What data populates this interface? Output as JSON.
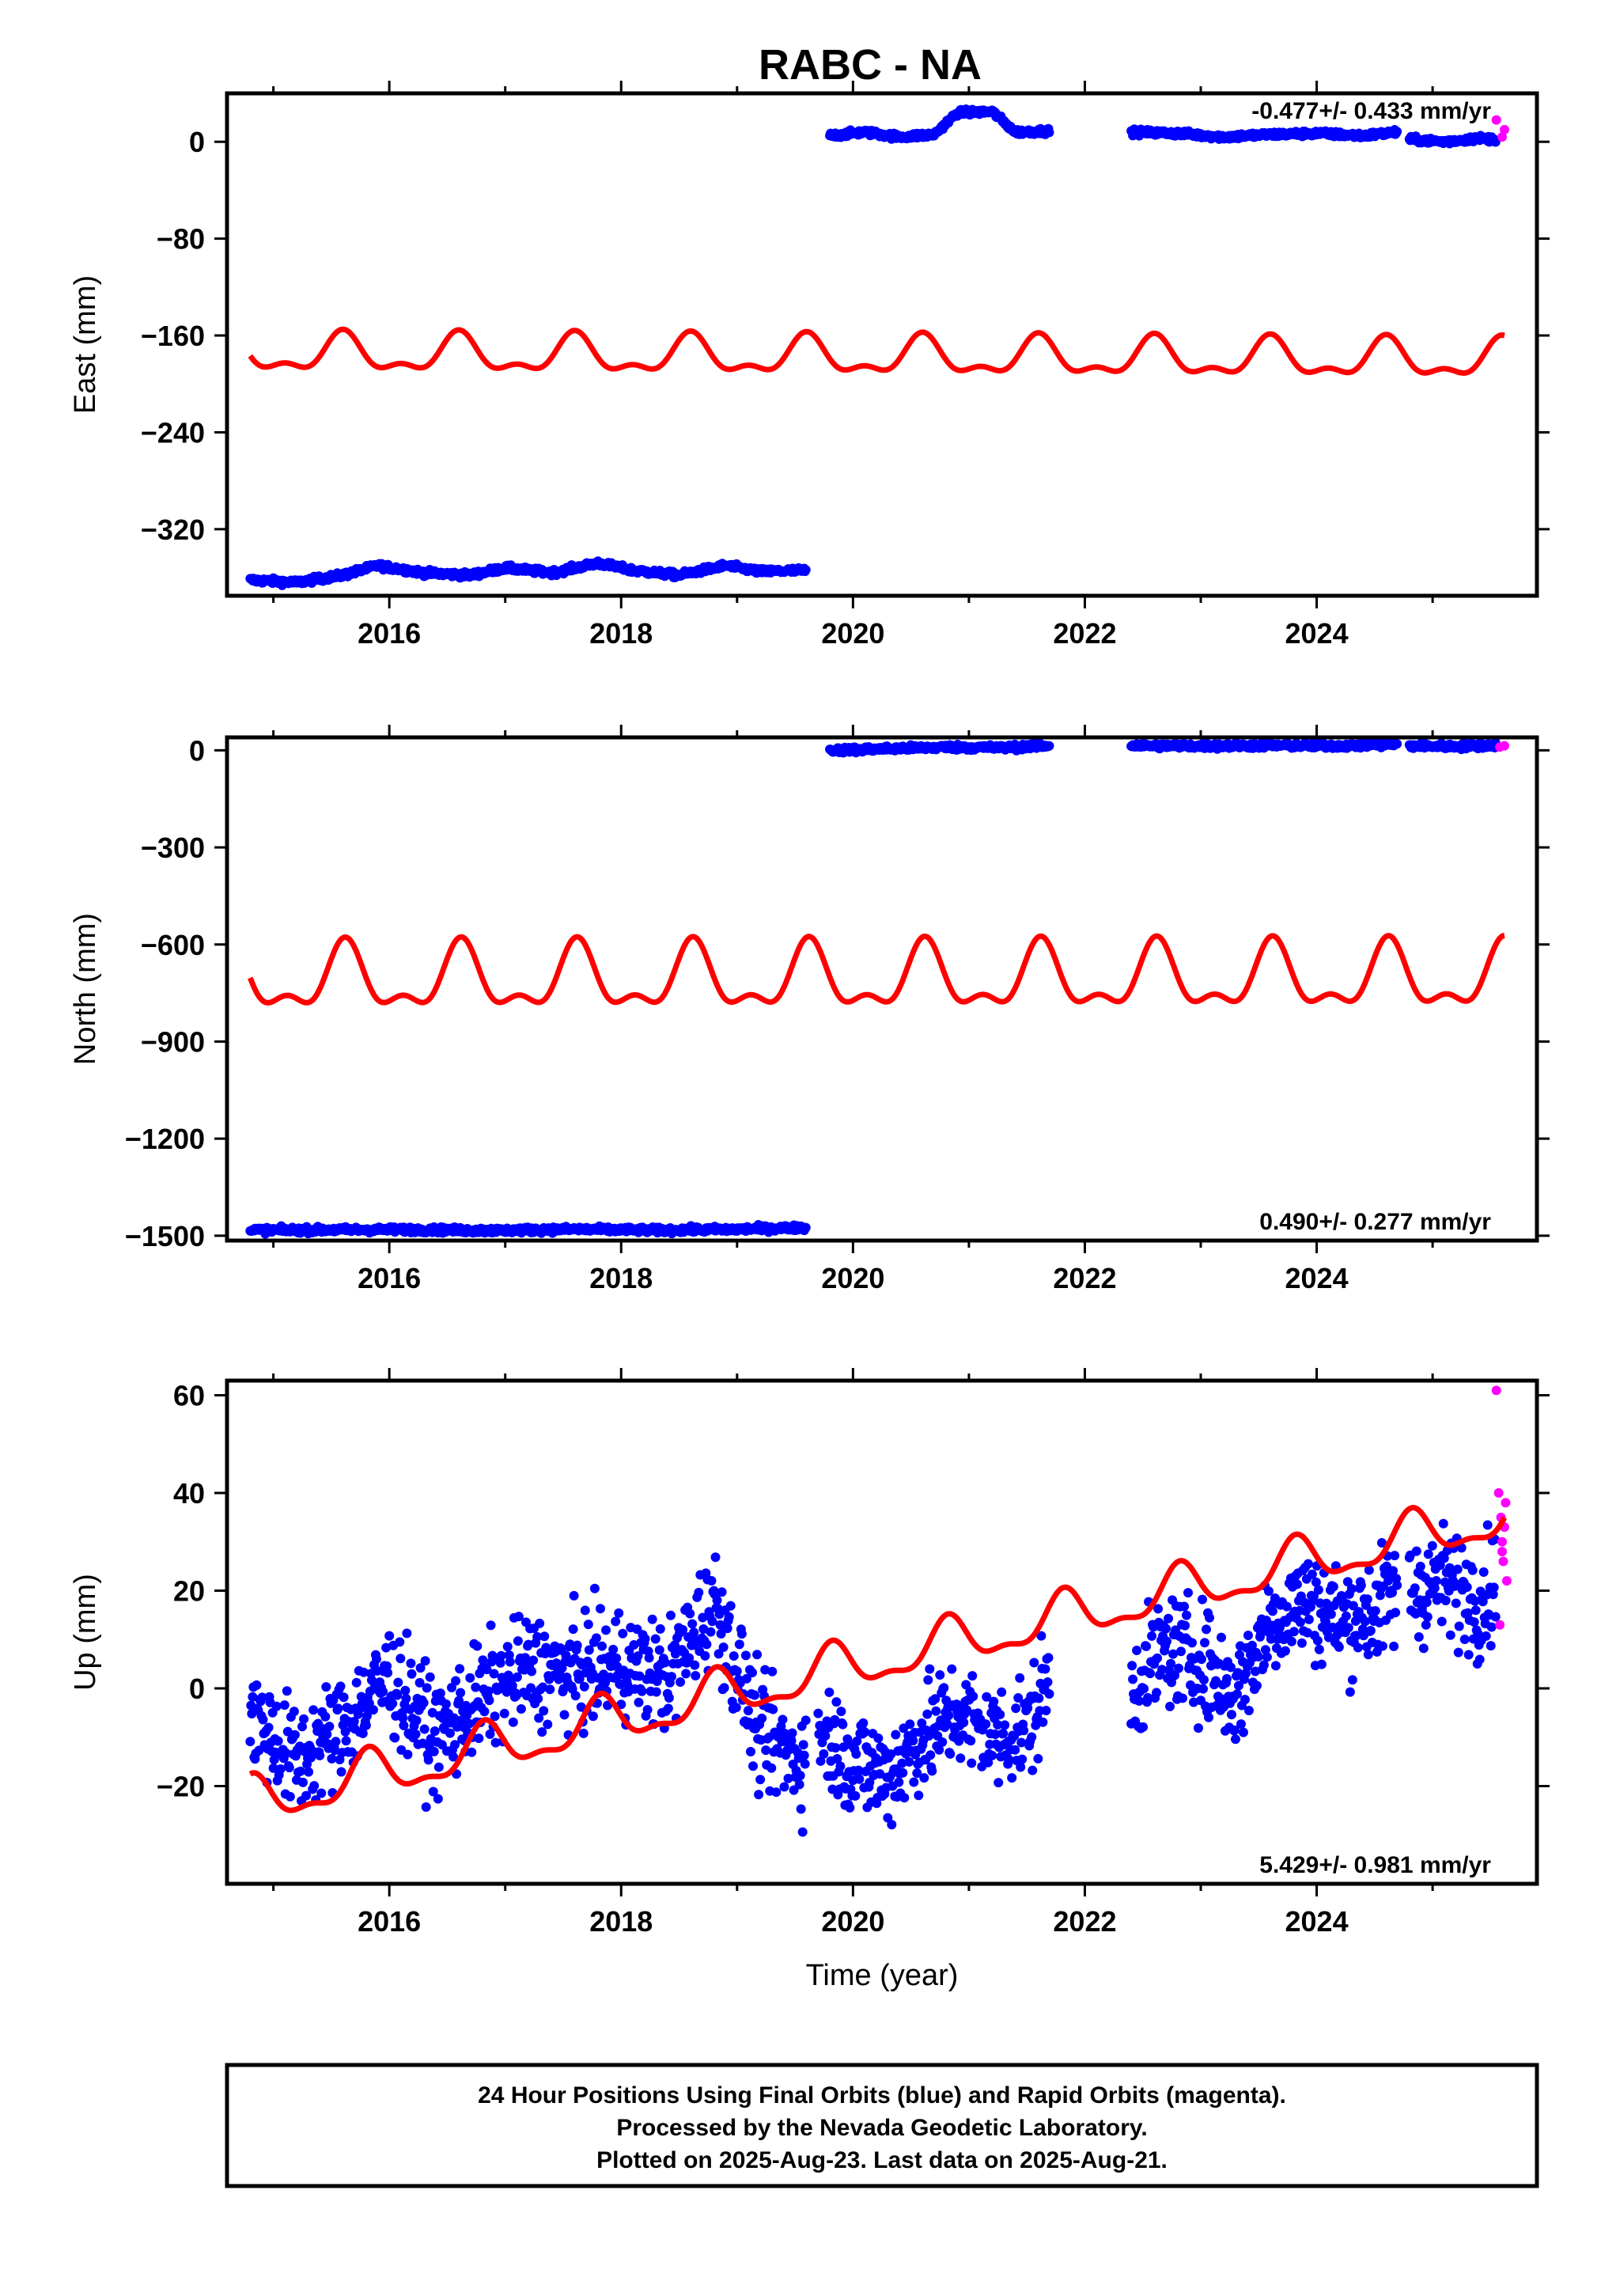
{
  "chart_data": [
    {
      "type": "scatter",
      "title": "RABC - NA",
      "ylabel": "East (mm)",
      "xlabel": "",
      "xlim": [
        2014.6,
        2025.9
      ],
      "ylim": [
        -375,
        40
      ],
      "xticks": [
        2016,
        2018,
        2020,
        2022,
        2024
      ],
      "yticks": [
        0,
        -80,
        -160,
        -240,
        -320
      ],
      "rate_label": "-0.477+/- 0.433 mm/yr",
      "rate_position": "top-right",
      "series": [
        {
          "kind": "final",
          "color": "#0000ff",
          "segments": [
            {
              "x": [
                2014.8,
                2015.2,
                2015.6,
                2015.9,
                2016.3,
                2016.7,
                2017.0,
                2017.4,
                2017.8,
                2018.1,
                2018.5,
                2018.9,
                2019.2,
                2019.6
              ],
              "y": [
                -362,
                -364,
                -358,
                -350,
                -356,
                -358,
                -352,
                -356,
                -348,
                -354,
                -358,
                -350,
                -355,
                -354
              ]
            },
            {
              "x": [
                2019.8,
                2020.1,
                2020.4,
                2020.7,
                2020.9,
                2021.2,
                2021.4,
                2021.7
              ],
              "y": [
                5,
                8,
                4,
                6,
                24,
                25,
                8,
                9
              ]
            },
            {
              "x": [
                2022.4,
                2022.8,
                2023.2,
                2023.6,
                2024.0,
                2024.4,
                2024.7
              ],
              "y": [
                8,
                7,
                4,
                6,
                7,
                5,
                8
              ]
            },
            {
              "x": [
                2024.8,
                2025.1,
                2025.4,
                2025.55
              ],
              "y": [
                2,
                0,
                3,
                2
              ]
            }
          ]
        },
        {
          "kind": "rapid",
          "color": "#ff00ff",
          "x": [
            2025.55,
            2025.6,
            2025.62
          ],
          "y": [
            18,
            4,
            10
          ]
        },
        {
          "kind": "model",
          "color": "#ff0000",
          "line": true,
          "mean": -178,
          "rate": -0.477,
          "t0": 2020,
          "annual_amp": 14,
          "annual_phase": 2025.6,
          "semi_amp": 7,
          "semi_phase": 2025.6
        }
      ]
    },
    {
      "type": "scatter",
      "title": "",
      "ylabel": "North (mm)",
      "xlabel": "",
      "xlim": [
        2014.6,
        2025.9
      ],
      "ylim": [
        -1515,
        40
      ],
      "xticks": [
        2016,
        2018,
        2020,
        2022,
        2024
      ],
      "yticks": [
        0,
        -300,
        -600,
        -900,
        -1200,
        -1500
      ],
      "rate_label": "0.490+/- 0.277 mm/yr",
      "rate_position": "bottom-right",
      "series": [
        {
          "kind": "final",
          "color": "#0000ff",
          "segments": [
            {
              "x": [
                2014.8,
                2015.5,
                2016.2,
                2016.9,
                2017.6,
                2018.3,
                2019.0,
                2019.6
              ],
              "y": [
                -1483,
                -1482,
                -1481,
                -1484,
                -1480,
                -1483,
                -1480,
                -1475
              ]
            },
            {
              "x": [
                2019.8,
                2020.3,
                2020.8,
                2021.3,
                2021.7
              ],
              "y": [
                0,
                5,
                10,
                8,
                15
              ]
            },
            {
              "x": [
                2022.4,
                2023.0,
                2023.6,
                2024.2,
                2024.7
              ],
              "y": [
                15,
                13,
                15,
                14,
                18
              ]
            },
            {
              "x": [
                2024.8,
                2025.2,
                2025.55
              ],
              "y": [
                14,
                12,
                16
              ]
            }
          ]
        },
        {
          "kind": "rapid",
          "color": "#ff00ff",
          "x": [
            2025.58,
            2025.62
          ],
          "y": [
            10,
            14
          ]
        },
        {
          "kind": "model",
          "color": "#ff0000",
          "line": true,
          "mean": -710,
          "rate": 0.49,
          "t0": 2020,
          "annual_amp": 90,
          "annual_phase": 2025.62,
          "semi_amp": 45,
          "semi_phase": 2025.62
        }
      ]
    },
    {
      "type": "scatter",
      "title": "",
      "ylabel": "Up (mm)",
      "xlabel": "Time (year)",
      "xlim": [
        2014.6,
        2025.9
      ],
      "ylim": [
        -40,
        63
      ],
      "xticks": [
        2016,
        2018,
        2020,
        2022,
        2024
      ],
      "yticks": [
        60,
        40,
        20,
        0,
        -20
      ],
      "rate_label": "5.429+/- 0.981 mm/yr",
      "rate_position": "bottom-right",
      "series": [
        {
          "kind": "final",
          "color": "#0000ff",
          "noise": 8,
          "segments": [
            {
              "x": [
                2014.8,
                2015.2,
                2015.6,
                2016.0,
                2016.4,
                2016.8,
                2017.2,
                2017.6,
                2018.0,
                2018.4,
                2018.8,
                2019.2,
                2019.6
              ],
              "y": [
                -5,
                -15,
                -8,
                2,
                -10,
                -2,
                4,
                3,
                5,
                2,
                18,
                -10,
                -15
              ]
            },
            {
              "x": [
                2019.7,
                2020.0,
                2020.3,
                2020.6,
                2020.9,
                2021.2,
                2021.5,
                2021.7
              ],
              "y": [
                -8,
                -15,
                -18,
                -10,
                -5,
                -10,
                -8,
                2
              ]
            },
            {
              "x": [
                2022.4,
                2022.7,
                2023.0,
                2023.3,
                2023.6,
                2023.9,
                2024.2,
                2024.5,
                2024.7
              ],
              "y": [
                0,
                8,
                6,
                -2,
                14,
                18,
                14,
                16,
                20
              ]
            },
            {
              "x": [
                2024.8,
                2025.1,
                2025.4,
                2025.55
              ],
              "y": [
                20,
                22,
                18,
                22
              ]
            }
          ]
        },
        {
          "kind": "rapid",
          "color": "#ff00ff",
          "x": [
            2025.55,
            2025.57,
            2025.59,
            2025.6,
            2025.61,
            2025.62,
            2025.63,
            2025.64,
            2025.58,
            2025.6
          ],
          "y": [
            61,
            40,
            35,
            30,
            26,
            33,
            38,
            22,
            13,
            28
          ]
        },
        {
          "kind": "model",
          "color": "#ff0000",
          "line": true,
          "mean": 4.5,
          "rate": 5.429,
          "t0": 2020,
          "annual_amp": 4.5,
          "annual_phase": 2024.82,
          "semi_amp": 1.8,
          "semi_phase": 2024.82
        }
      ]
    }
  ],
  "footer": {
    "line1": "24 Hour Positions Using Final Orbits (blue) and Rapid Orbits (magenta).",
    "line2": "Processed by the Nevada Geodetic Laboratory.",
    "line3": "Plotted on 2025-Aug-23. Last data on 2025-Aug-21."
  }
}
